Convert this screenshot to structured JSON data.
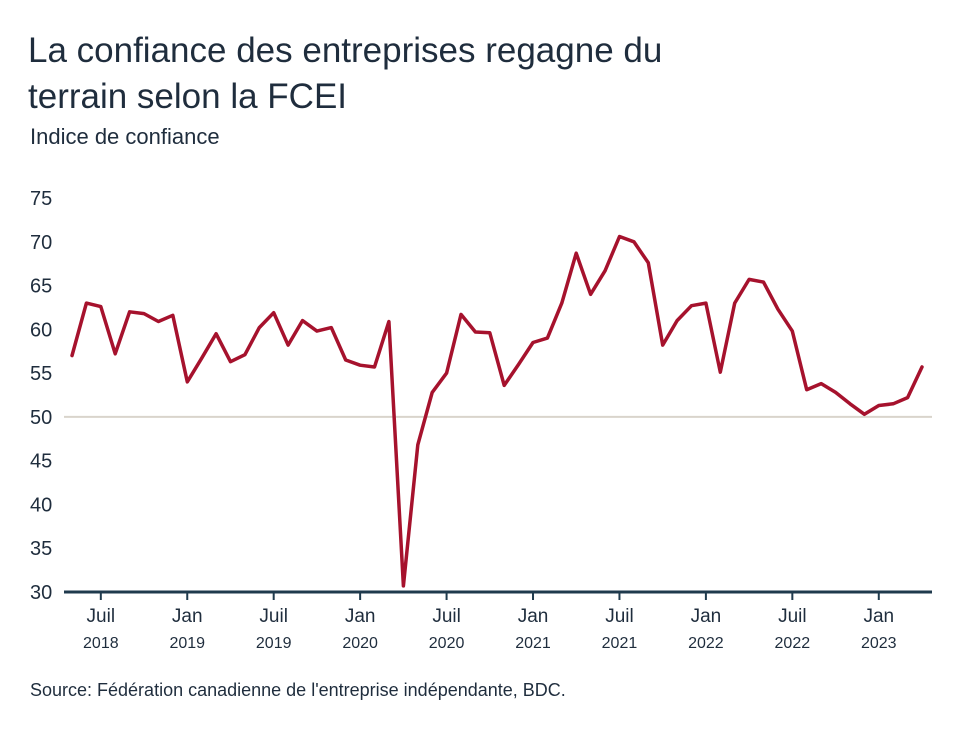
{
  "title": "La confiance des entreprises regagne du terrain selon la FCEI",
  "subtitle": "Indice de confiance",
  "source": "Source: Fédération canadienne de l'entreprise indépendante, BDC.",
  "colors": {
    "line": "#a6122d",
    "axis": "#1f3a4d",
    "reference_line": "#d9d4cc",
    "text": "#1f2d3d"
  },
  "chart_data": {
    "type": "line",
    "title": "La confiance des entreprises regagne du terrain selon la FCEI",
    "ylabel": "Indice de confiance",
    "xlabel": "",
    "ylim": [
      30,
      75
    ],
    "yticks": [
      30,
      35,
      40,
      45,
      50,
      55,
      60,
      65,
      70,
      75
    ],
    "reference_line": 50,
    "grid": false,
    "xticks": [
      {
        "x": "2018-07",
        "month": "Juil",
        "year": "2018"
      },
      {
        "x": "2019-01",
        "month": "Jan",
        "year": "2019"
      },
      {
        "x": "2019-07",
        "month": "Juil",
        "year": "2019"
      },
      {
        "x": "2020-01",
        "month": "Jan",
        "year": "2020"
      },
      {
        "x": "2020-07",
        "month": "Juil",
        "year": "2020"
      },
      {
        "x": "2021-01",
        "month": "Jan",
        "year": "2021"
      },
      {
        "x": "2021-07",
        "month": "Juil",
        "year": "2021"
      },
      {
        "x": "2022-01",
        "month": "Jan",
        "year": "2022"
      },
      {
        "x": "2022-07",
        "month": "Juil",
        "year": "2022"
      },
      {
        "x": "2023-01",
        "month": "Jan",
        "year": "2023"
      }
    ],
    "x": [
      "2018-05",
      "2018-06",
      "2018-07",
      "2018-08",
      "2018-09",
      "2018-10",
      "2018-11",
      "2018-12",
      "2019-01",
      "2019-02",
      "2019-03",
      "2019-04",
      "2019-05",
      "2019-06",
      "2019-07",
      "2019-08",
      "2019-09",
      "2019-10",
      "2019-11",
      "2019-12",
      "2020-01",
      "2020-02",
      "2020-03",
      "2020-04",
      "2020-05",
      "2020-06",
      "2020-07",
      "2020-08",
      "2020-09",
      "2020-10",
      "2020-11",
      "2020-12",
      "2021-01",
      "2021-02",
      "2021-03",
      "2021-04",
      "2021-05",
      "2021-06",
      "2021-07",
      "2021-08",
      "2021-09",
      "2021-10",
      "2021-11",
      "2021-12",
      "2022-01",
      "2022-02",
      "2022-03",
      "2022-04",
      "2022-05",
      "2022-06",
      "2022-07",
      "2022-08",
      "2022-09",
      "2022-10",
      "2022-11",
      "2022-12",
      "2023-01",
      "2023-02",
      "2023-03",
      "2023-04"
    ],
    "series": [
      {
        "values": [
          57.0,
          63.0,
          62.6,
          57.2,
          62.0,
          61.8,
          60.9,
          61.6,
          54.0,
          56.7,
          59.5,
          56.3,
          57.1,
          60.2,
          61.9,
          58.2,
          61.0,
          59.8,
          60.2,
          56.5,
          55.9,
          55.7,
          60.9,
          30.7,
          46.8,
          52.8,
          55.0,
          61.7,
          59.7,
          59.6,
          53.6,
          56.0,
          58.5,
          59.0,
          63.0,
          68.7,
          64.0,
          66.7,
          70.6,
          70.0,
          67.6,
          58.2,
          61.0,
          62.7,
          63.0,
          55.1,
          63.0,
          65.7,
          65.4,
          62.3,
          59.8,
          53.1,
          53.8,
          52.8,
          51.5,
          50.3,
          51.3,
          51.5,
          52.2,
          55.7
        ]
      }
    ]
  }
}
